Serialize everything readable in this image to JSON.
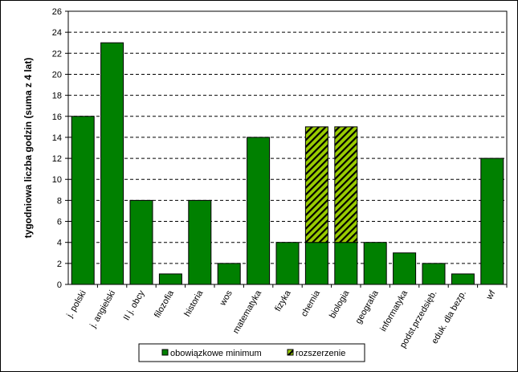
{
  "chart_data": {
    "type": "bar",
    "stacked": true,
    "categories": [
      "j. polski",
      "j. angielski",
      "II j. obcy",
      "filozofia",
      "historia",
      "wos",
      "matematyka",
      "fizyka",
      "chemia",
      "biologia",
      "geografia",
      "informatyka",
      "podst.przedsięb.",
      "eduk. dla bezp.",
      "wf"
    ],
    "series": [
      {
        "name": "obowiązkowe minimum",
        "color": "#008000",
        "pattern": "solid",
        "values": [
          16,
          23,
          8,
          1,
          8,
          2,
          14,
          4,
          4,
          4,
          4,
          3,
          2,
          1,
          12
        ]
      },
      {
        "name": "rozszerzenie",
        "color": "#99cc00",
        "pattern": "diagonal-hatch",
        "values": [
          0,
          0,
          0,
          0,
          0,
          0,
          0,
          0,
          11,
          11,
          0,
          0,
          0,
          0,
          0
        ]
      }
    ],
    "title": "",
    "xlabel": "",
    "ylabel": "tygodniowa liczba godzin (suma z 4 lat)",
    "ylim": [
      0,
      26
    ],
    "ytick_step": 2,
    "yticks": [
      "0",
      "2",
      "4",
      "6",
      "8",
      "10",
      "12",
      "14",
      "16",
      "18",
      "20",
      "22",
      "24",
      "26"
    ],
    "grid": "horizontal-dashed",
    "legend_position": "bottom"
  }
}
